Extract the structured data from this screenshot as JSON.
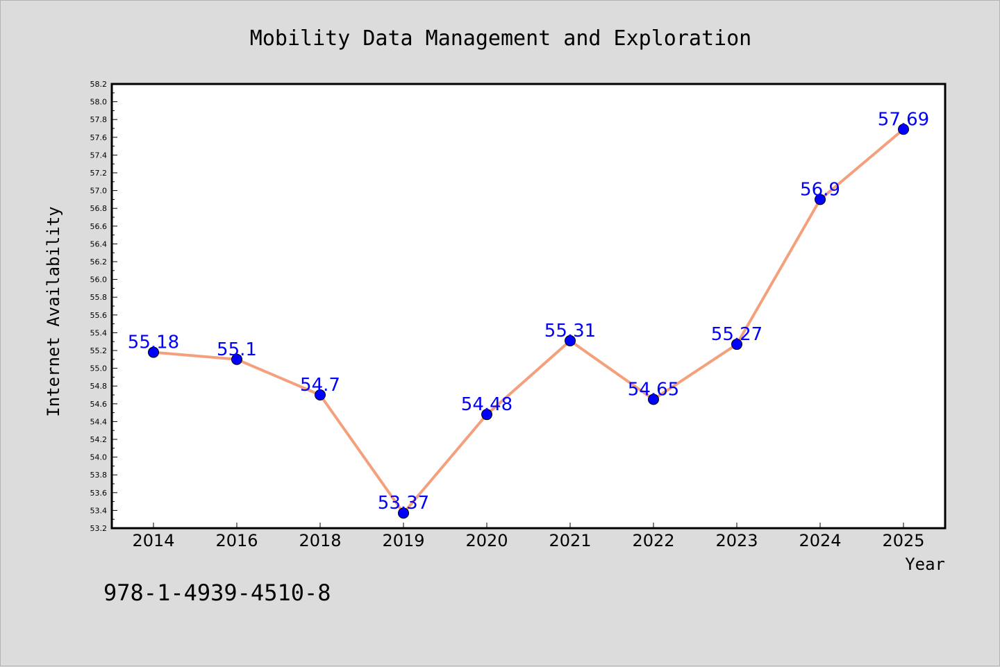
{
  "chart_data": {
    "type": "line",
    "title": "Mobility Data Management and Exploration",
    "xlabel": "Year",
    "ylabel": "Internet Availability",
    "categories": [
      "2014",
      "2016",
      "2018",
      "2019",
      "2020",
      "2021",
      "2022",
      "2023",
      "2024",
      "2025"
    ],
    "series": [
      {
        "values": [
          55.18,
          55.1,
          54.7,
          53.37,
          54.48,
          55.31,
          54.65,
          55.27,
          56.9,
          57.69
        ]
      }
    ],
    "data_labels": [
      "55.18",
      "55.1",
      "54.7",
      "53.37",
      "54.48",
      "55.31",
      "54.65",
      "55.27",
      "56.9",
      "57.69"
    ],
    "ylim": [
      53.2,
      58.2
    ],
    "yticks": [
      "53.2",
      "53.4",
      "53.6",
      "53.8",
      "54.0",
      "54.2",
      "54.4",
      "54.6",
      "54.8",
      "55.0",
      "55.2",
      "55.4",
      "55.6",
      "55.8",
      "56.0",
      "56.2",
      "56.4",
      "56.6",
      "56.8",
      "57.0",
      "57.2",
      "57.4",
      "57.6",
      "57.8",
      "58.0",
      "58.2"
    ],
    "grid": false,
    "colors": {
      "line": "#f4a07c",
      "marker": "#0000ff",
      "label": "#0000ff",
      "background": "#dcdcdc",
      "plot": "#ffffff"
    }
  },
  "annotation": "978-1-4939-4510-8"
}
